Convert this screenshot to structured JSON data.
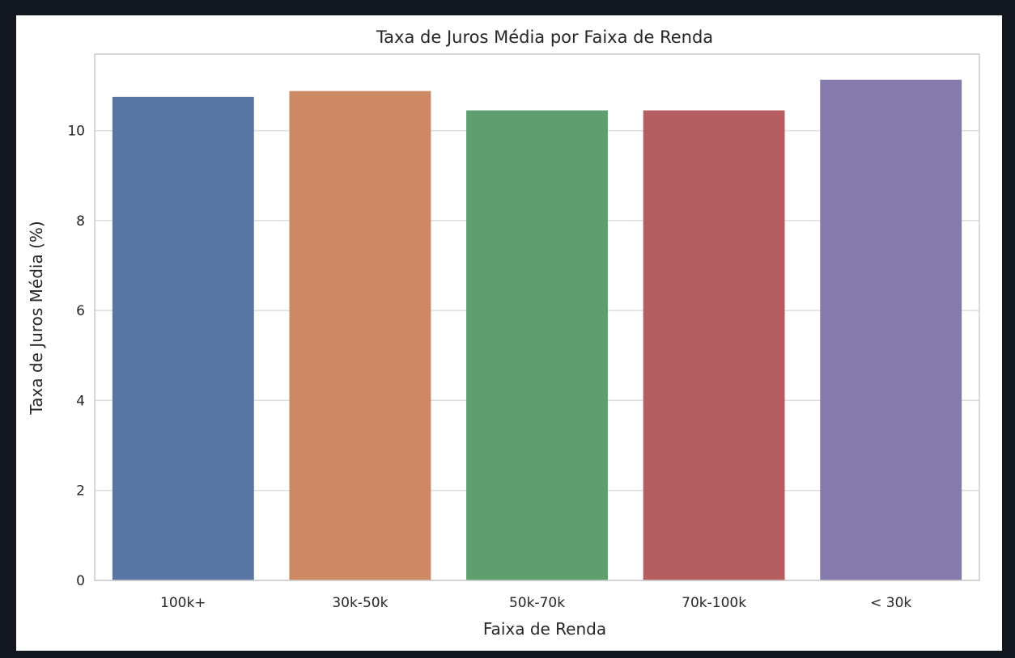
{
  "chart_data": {
    "type": "bar",
    "title": "Taxa de Juros Média por Faixa de Renda",
    "xlabel": "Faixa de Renda",
    "ylabel": "Taxa de Juros Média (%)",
    "categories": [
      "100k+",
      "30k-50k",
      "50k-70k",
      "70k-100k",
      "< 30k"
    ],
    "values": [
      10.75,
      10.88,
      10.45,
      10.45,
      11.13
    ],
    "colors": [
      "#5875a4",
      "#cc8963",
      "#5f9e6e",
      "#b55d60",
      "#857aab"
    ],
    "ylim": [
      0,
      11.7
    ],
    "yticks": [
      0,
      2,
      4,
      6,
      8,
      10
    ],
    "grid": true,
    "grid_color": "#dddddd",
    "frame_color": "#cccccc",
    "legend": "none"
  }
}
